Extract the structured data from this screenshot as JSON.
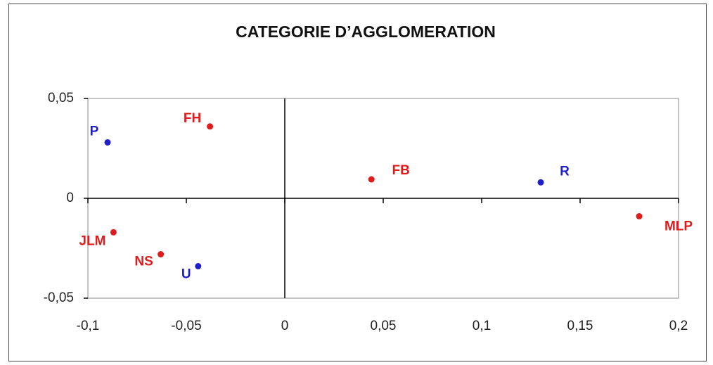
{
  "chart_data": {
    "type": "scatter",
    "title": "CATEGORIE D’AGGLOMERATION",
    "points": [
      {
        "label": "P",
        "x": -0.09,
        "y": 0.028,
        "color": "#1f1fcc"
      },
      {
        "label": "FH",
        "x": -0.038,
        "y": 0.036,
        "color": "#e01b1b"
      },
      {
        "label": "FB",
        "x": 0.044,
        "y": 0.0095,
        "color": "#e01b1b"
      },
      {
        "label": "R",
        "x": 0.13,
        "y": 0.008,
        "color": "#1f1fcc"
      },
      {
        "label": "MLP",
        "x": 0.18,
        "y": -0.009,
        "color": "#e01b1b"
      },
      {
        "label": "JLM",
        "x": -0.087,
        "y": -0.017,
        "color": "#e01b1b"
      },
      {
        "label": "NS",
        "x": -0.063,
        "y": -0.028,
        "color": "#e01b1b"
      },
      {
        "label": "U",
        "x": -0.044,
        "y": -0.034,
        "color": "#1f1fcc"
      }
    ],
    "xlim": [
      -0.1,
      0.2
    ],
    "xticks": [
      {
        "value": -0.1,
        "label": "-0,1"
      },
      {
        "value": -0.05,
        "label": "-0,05"
      },
      0,
      {
        "value": 0.05,
        "label": "0,05"
      },
      {
        "value": 0.1,
        "label": "0,1"
      },
      {
        "value": 0.15,
        "label": "0,15"
      },
      {
        "value": 0.2,
        "label": "0,2"
      }
    ],
    "ylim": [
      -0.05,
      0.05
    ],
    "yticks": [
      {
        "value": -0.05,
        "label": "-0,05"
      },
      0,
      {
        "value": 0.05,
        "label": "0,05"
      }
    ]
  }
}
